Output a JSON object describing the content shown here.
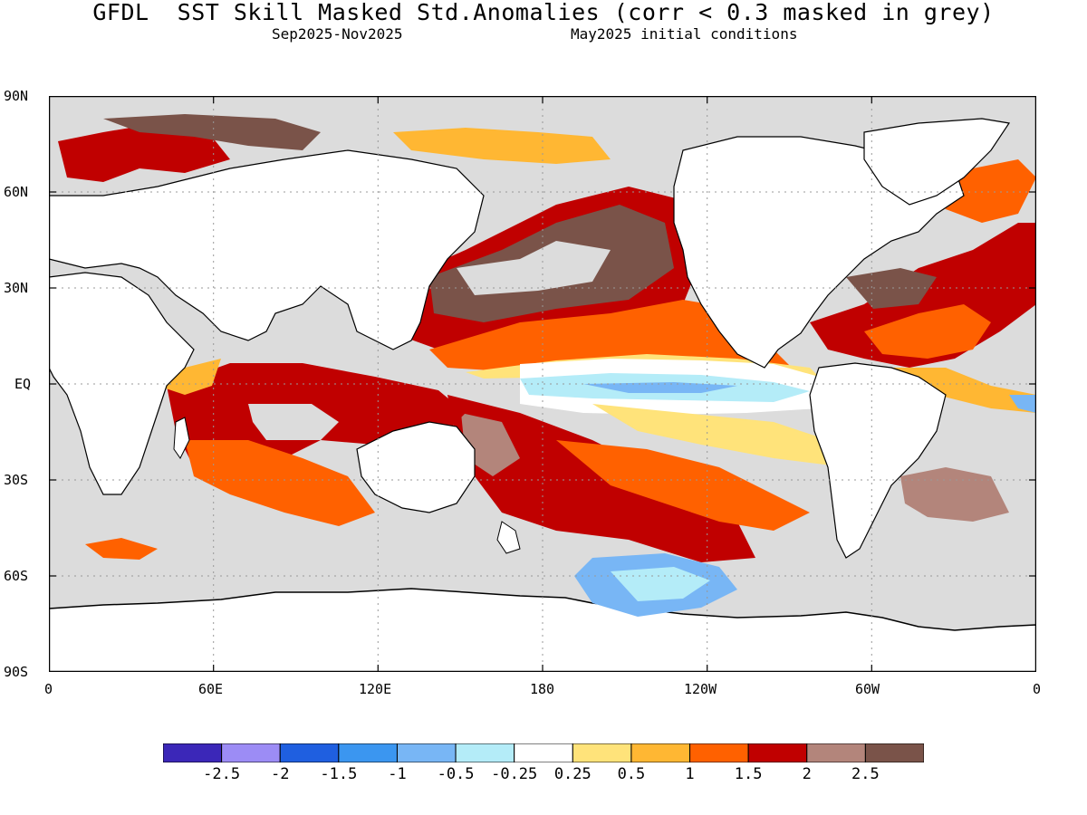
{
  "header": {
    "title": "GFDL  SST Skill Masked Std.Anomalies (corr < 0.3 masked in grey)",
    "period": "Sep2025-Nov2025",
    "init": "May2025 initial conditions"
  },
  "axes": {
    "lat_ticks": [
      "90N",
      "60N",
      "30N",
      "EQ",
      "30S",
      "60S",
      "90S"
    ],
    "lon_ticks": [
      "0",
      "60E",
      "120E",
      "180",
      "120W",
      "60W",
      "0"
    ]
  },
  "colorbar": {
    "labels": [
      "-2.5",
      "-2",
      "-1.5",
      "-1",
      "-0.5",
      "-0.25",
      "0.25",
      "0.5",
      "1",
      "1.5",
      "2",
      "2.5"
    ],
    "colors": [
      "#3b27b8",
      "#9c8cf5",
      "#1f5fe0",
      "#3b96f0",
      "#78b6f5",
      "#b4ecf8",
      "#ffffff",
      "#ffe37a",
      "#ffb733",
      "#ff6100",
      "#c00000",
      "#b3857b",
      "#7a5349"
    ]
  },
  "palette": {
    "land": "#ffffff",
    "masked": "#dcdcdc",
    "coast": "#000000"
  }
}
